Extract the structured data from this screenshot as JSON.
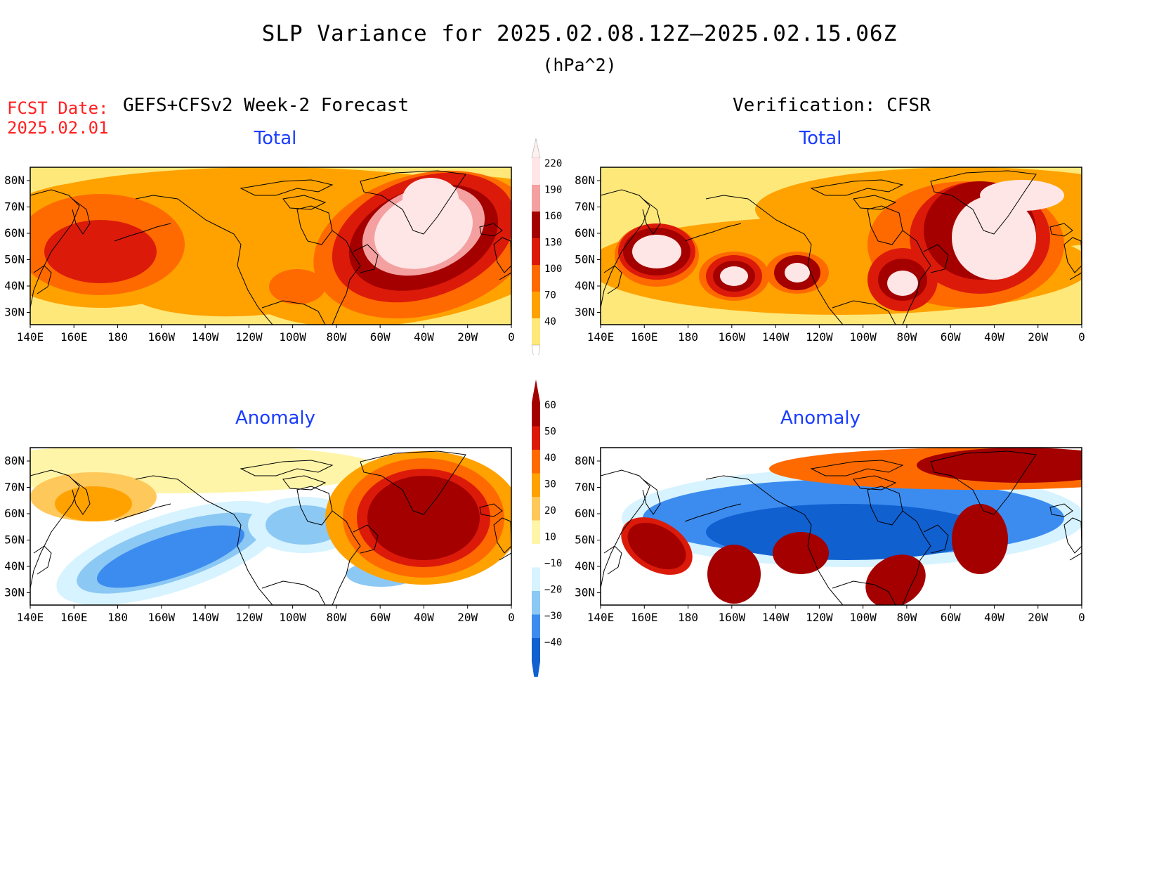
{
  "title": "SLP Variance for 2025.02.08.12Z–2025.02.15.06Z",
  "units": "(hPa^2)",
  "fcst_label": "FCST Date:",
  "fcst_date": "2025.02.01",
  "left_header": "GEFS+CFSv2 Week-2 Forecast",
  "right_header": "Verification: CFSR",
  "panels": {
    "forecast_total": {
      "title": "Total"
    },
    "verification_total": {
      "title": "Total"
    },
    "forecast_anomaly": {
      "title": "Anomaly"
    },
    "verification_anomaly": {
      "title": "Anomaly"
    }
  },
  "lon_labels": [
    "140E",
    "160E",
    "180",
    "160W",
    "140W",
    "120W",
    "100W",
    "80W",
    "60W",
    "40W",
    "20W",
    "0"
  ],
  "lat_labels": [
    "80N",
    "70N",
    "60N",
    "50N",
    "40N",
    "30N"
  ],
  "total_colorbar": {
    "labels": [
      "220",
      "190",
      "160",
      "130",
      "100",
      "70",
      "40"
    ],
    "colors": [
      "#ffe6e6",
      "#f4a0a0",
      "#a40000",
      "#dc1a0a",
      "#ff6a00",
      "#ffa200",
      "#ffe87a"
    ]
  },
  "anomaly_colorbar": {
    "labels": [
      "60",
      "50",
      "40",
      "30",
      "20",
      "10",
      "−10",
      "−20",
      "−30",
      "−40"
    ],
    "colors": [
      "#a40000",
      "#dc1a0a",
      "#ff6a00",
      "#ffa200",
      "#ffc85a",
      "#fff5a8",
      "#ffffff",
      "#d6f3ff",
      "#8cc8f4",
      "#3c8cf0",
      "#1060d0"
    ]
  }
}
